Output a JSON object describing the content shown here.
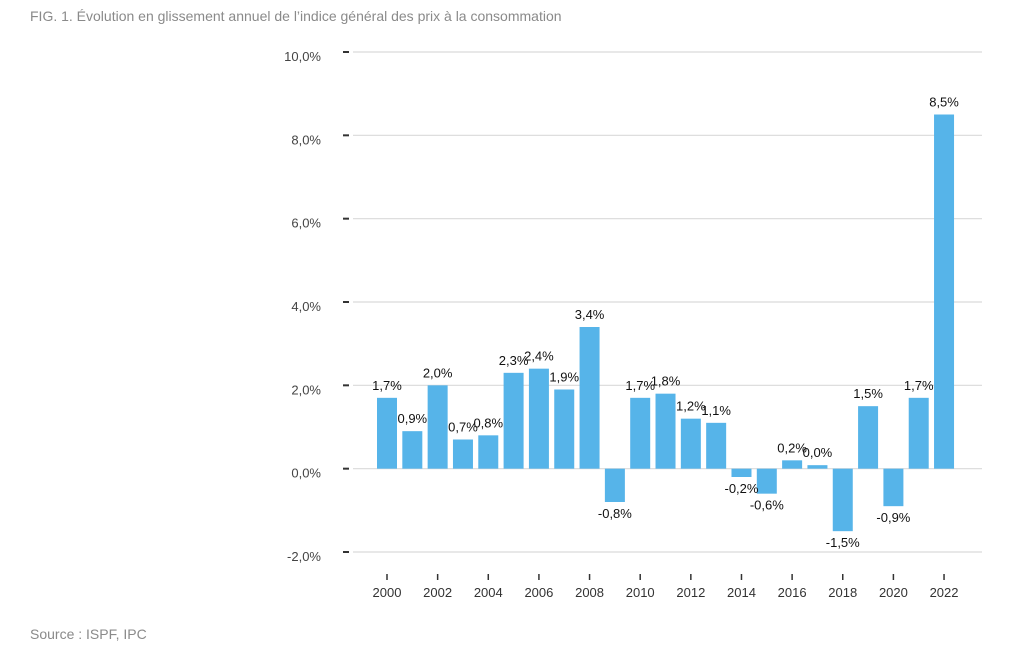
{
  "figure": {
    "title": "FIG. 1. Évolution en glissement annuel de l’indice général des prix à la consommation",
    "source": "Source : ISPF, IPC"
  },
  "colors": {
    "bar": "#56b4e9",
    "grid": "#d9d9d9",
    "tick_mark": "#333333",
    "title_text": "#8a8a8a"
  },
  "chart_data": {
    "type": "bar",
    "title": "",
    "xlabel": "",
    "ylabel": "",
    "ylim": [
      -2.0,
      10.0
    ],
    "yticks": [
      -2.0,
      0.0,
      2.0,
      4.0,
      6.0,
      8.0,
      10.0
    ],
    "ytick_labels": [
      "-2,0%",
      "0,0%",
      "2,0%",
      "4,0%",
      "6,0%",
      "8,0%",
      "10,0%"
    ],
    "grid": true,
    "legend": "none",
    "categories": [
      "2000",
      "2001",
      "2002",
      "2003",
      "2004",
      "2005",
      "2006",
      "2007",
      "2008",
      "2009",
      "2010",
      "2011",
      "2012",
      "2013",
      "2014",
      "2015",
      "2016",
      "2017",
      "2018",
      "2019",
      "2020",
      "2021",
      "2022"
    ],
    "xtick_labels": [
      "2000",
      "2002",
      "2004",
      "2006",
      "2008",
      "2010",
      "2012",
      "2014",
      "2016",
      "2018",
      "2020",
      "2022"
    ],
    "values": [
      1.7,
      0.9,
      2.0,
      0.7,
      0.8,
      2.3,
      2.4,
      1.9,
      3.4,
      -0.8,
      1.7,
      1.8,
      1.2,
      1.1,
      -0.2,
      -0.6,
      0.2,
      0.0,
      -1.5,
      1.5,
      -0.9,
      1.7,
      8.5
    ],
    "data_labels": [
      "1,7%",
      "0,9%",
      "2,0%",
      "0,7%",
      "0,8%",
      "2,3%",
      "2,4%",
      "1,9%",
      "3,4%",
      "-0,8%",
      "1,7%",
      "1,8%",
      "1,2%",
      "1,1%",
      "-0,2%",
      "-0,6%",
      "0,2%",
      "0,0%",
      "-1,5%",
      "1,5%",
      "-0,9%",
      "1,7%",
      "8,5%"
    ]
  }
}
